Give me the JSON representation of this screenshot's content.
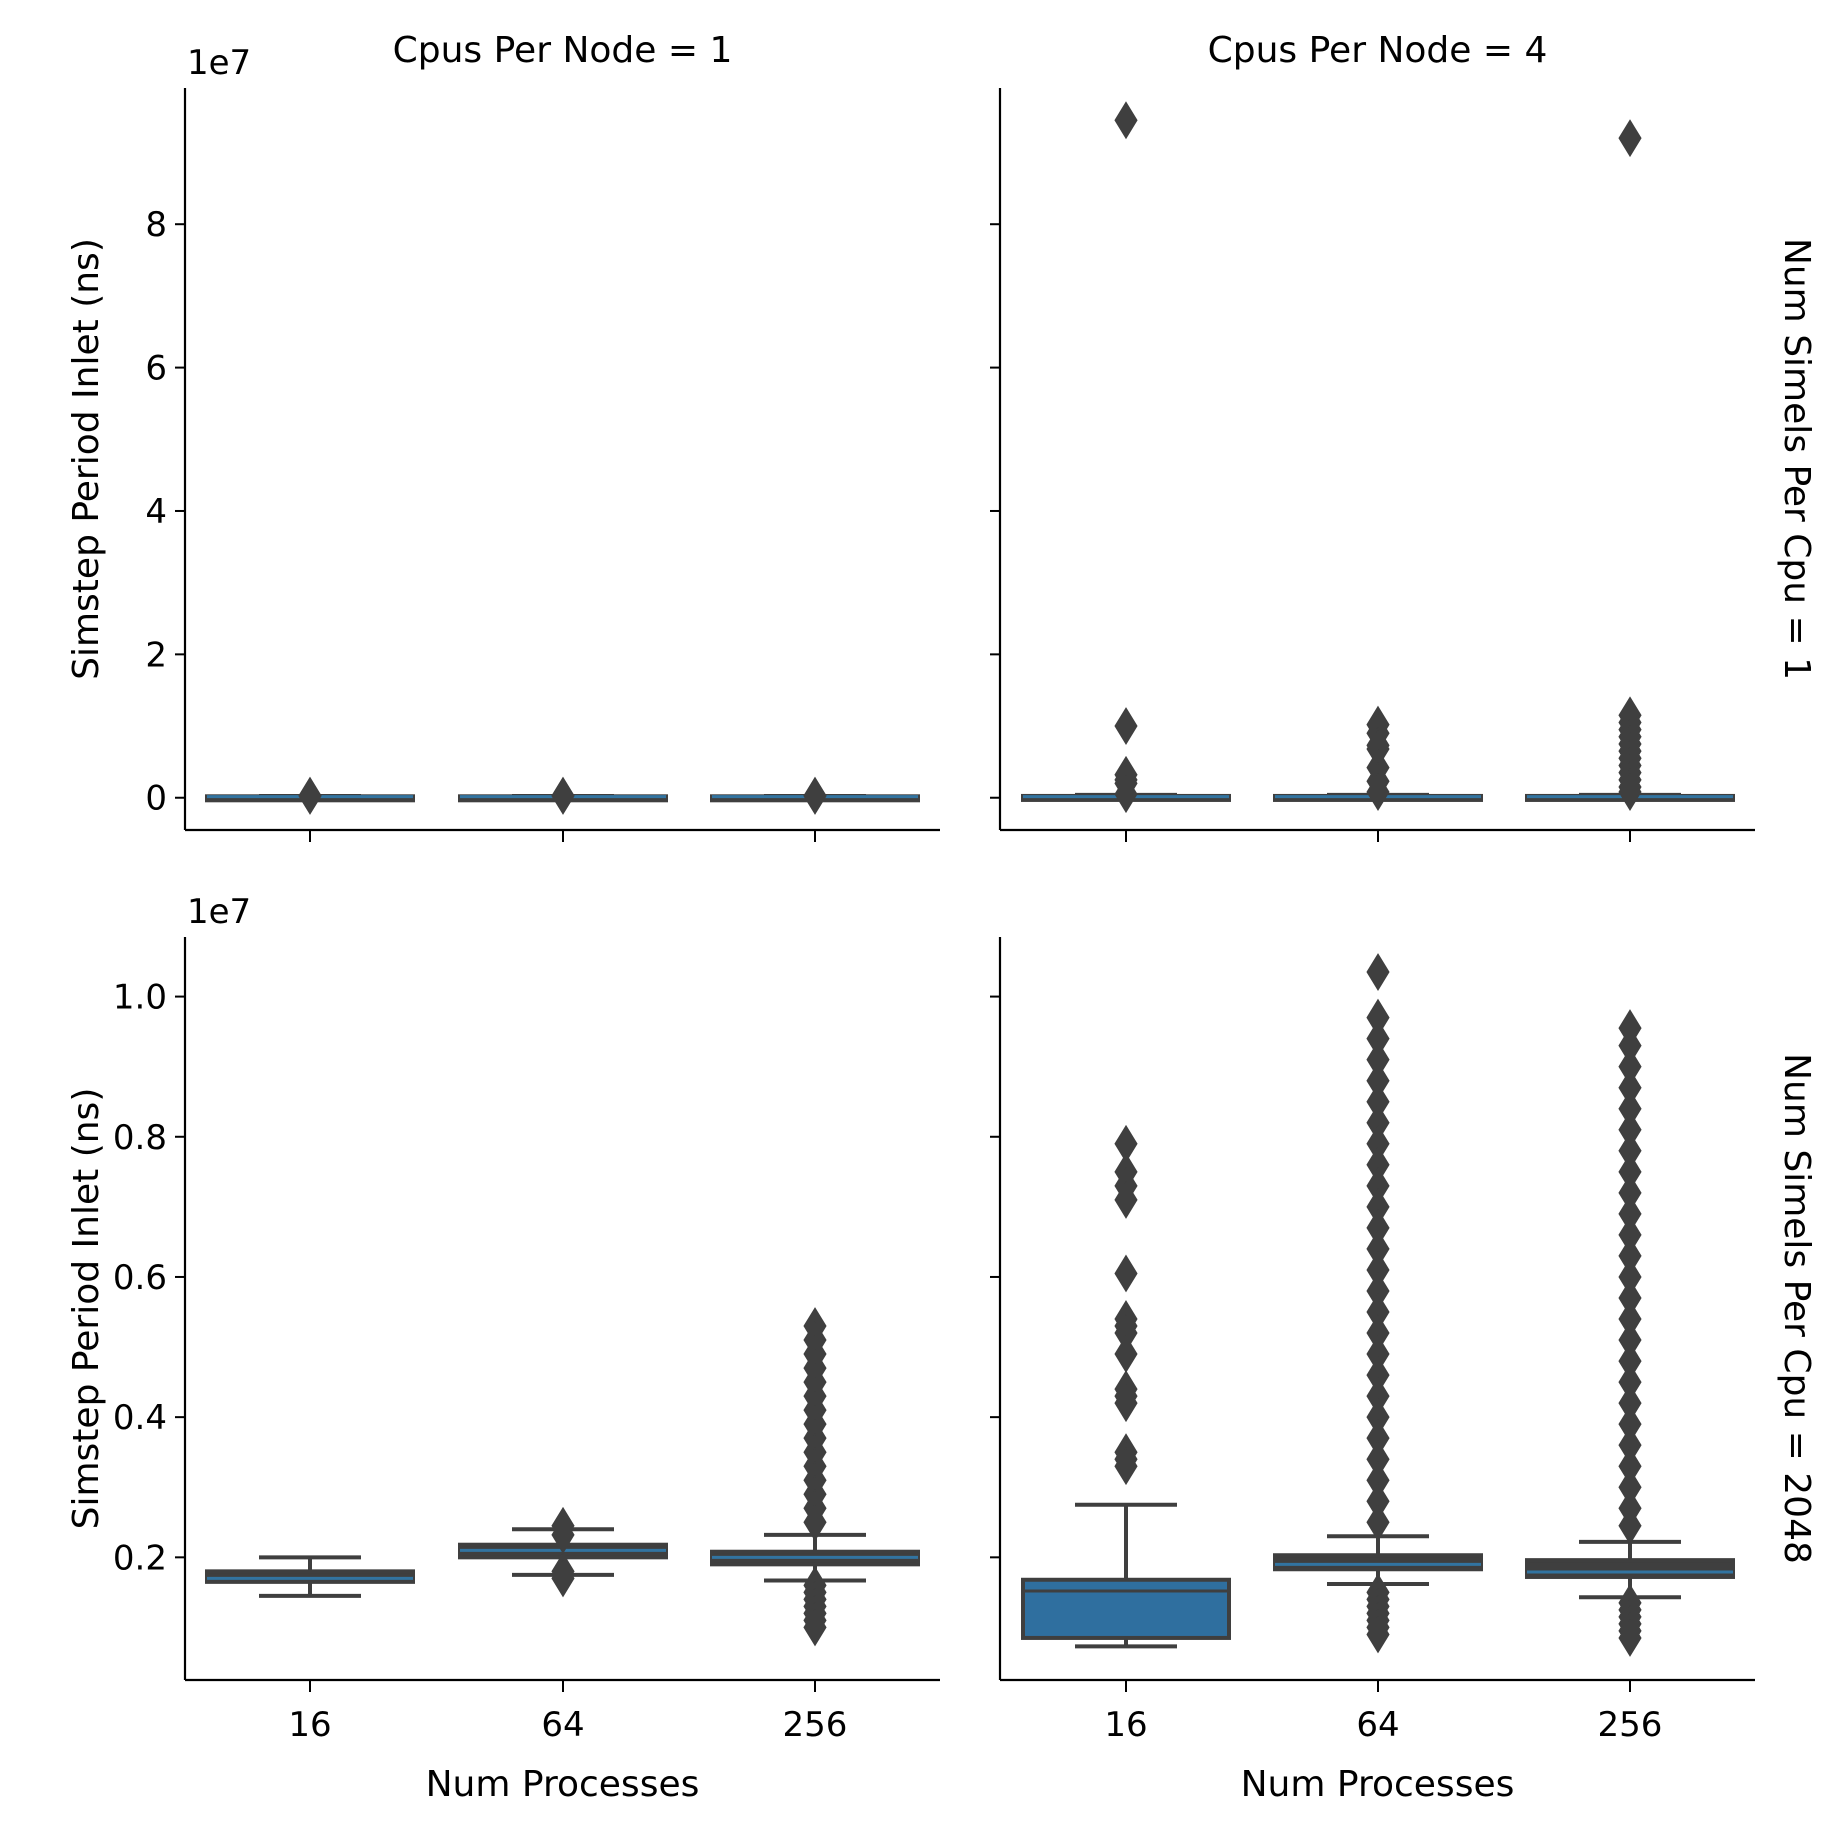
{
  "chart_data": {
    "type": "box",
    "facet_grid": {
      "col_variable": "Cpus Per Node",
      "row_variable": "Num Simels Per Cpu"
    },
    "xlabel": "Num Processes",
    "ylabel": "Simstep Period Inlet (ns)",
    "categories": [
      "16",
      "64",
      "256"
    ],
    "colors": {
      "box_fill": "#2f6f9f",
      "box_edge": "#3f3f3f",
      "median_on_fill": "#3274a1"
    },
    "panels": [
      {
        "row": 0,
        "col": 0,
        "title": "Cpus Per Node = 1",
        "row_label": "",
        "ylim": [
          -4500000,
          99000000
        ],
        "yticks": [
          0,
          20000000,
          40000000,
          60000000,
          80000000
        ],
        "ytick_labels": [
          "0",
          "2",
          "4",
          "6",
          "8"
        ],
        "offset_label": "1e7",
        "boxes": [
          {
            "category": "16",
            "q1": 100000,
            "median": 150000,
            "q3": 200000,
            "whisker_low": 80000,
            "whisker_high": 250000,
            "fliers": [
              300000,
              250000
            ],
            "filled": false
          },
          {
            "category": "64",
            "q1": 100000,
            "median": 150000,
            "q3": 200000,
            "whisker_low": 80000,
            "whisker_high": 250000,
            "fliers": [
              300000,
              250000
            ],
            "filled": false
          },
          {
            "category": "256",
            "q1": 100000,
            "median": 150000,
            "q3": 200000,
            "whisker_low": 80000,
            "whisker_high": 250000,
            "fliers": [
              300000,
              250000
            ],
            "filled": false
          }
        ]
      },
      {
        "row": 0,
        "col": 1,
        "title": "Cpus Per Node = 4",
        "row_label": "Num Simels Per Cpu = 1",
        "ylim": [
          -4500000,
          99000000
        ],
        "yticks": [
          0,
          20000000,
          40000000,
          60000000,
          80000000
        ],
        "ytick_labels": [],
        "offset_label": "",
        "boxes": [
          {
            "category": "16",
            "q1": 100000,
            "median": 150000,
            "q3": 250000,
            "whisker_low": 80000,
            "whisker_high": 400000,
            "fliers": [
              94500000,
              10000000,
              3200000,
              2500000,
              2000000,
              500000
            ],
            "filled": false
          },
          {
            "category": "64",
            "q1": 100000,
            "median": 150000,
            "q3": 250000,
            "whisker_low": 80000,
            "whisker_high": 400000,
            "fliers": [
              10200000,
              9000000,
              7300000,
              6800000,
              4200000,
              2300000,
              800000
            ],
            "filled": false
          },
          {
            "category": "256",
            "q1": 100000,
            "median": 150000,
            "q3": 250000,
            "whisker_low": 80000,
            "whisker_high": 400000,
            "fliers": [
              92000000,
              11500000,
              10500000,
              9500000,
              8500000,
              7500000,
              6500000,
              5500000,
              4500000,
              3500000,
              2500000,
              1500000,
              800000
            ],
            "filled": false
          }
        ]
      },
      {
        "row": 1,
        "col": 0,
        "title": "",
        "row_label": "",
        "ylim": [
          250000,
          10850000
        ],
        "yticks": [
          2000000,
          4000000,
          6000000,
          8000000,
          10000000
        ],
        "ytick_labels": [
          "0.2",
          "0.4",
          "0.6",
          "0.8",
          "1.0"
        ],
        "offset_label": "1e7",
        "boxes": [
          {
            "category": "16",
            "q1": 1650000,
            "median": 1700000,
            "q3": 1800000,
            "whisker_low": 1450000,
            "whisker_high": 2000000,
            "fliers": [],
            "filled": false
          },
          {
            "category": "64",
            "q1": 2000000,
            "median": 2100000,
            "q3": 2180000,
            "whisker_low": 1750000,
            "whisker_high": 2400000,
            "fliers": [
              2450000,
              2320000,
              1800000,
              1700000
            ],
            "filled": false
          },
          {
            "category": "256",
            "q1": 1900000,
            "median": 2000000,
            "q3": 2080000,
            "whisker_low": 1670000,
            "whisker_high": 2320000,
            "fliers": [
              5300000,
              5100000,
              4900000,
              4700000,
              4500000,
              4300000,
              4100000,
              3900000,
              3700000,
              3500000,
              3300000,
              3100000,
              2900000,
              2700000,
              2500000,
              1600000,
              1500000,
              1400000,
              1300000,
              1200000,
              1100000,
              1000000
            ],
            "filled": false
          }
        ]
      },
      {
        "row": 1,
        "col": 1,
        "title": "",
        "row_label": "Num Simels Per Cpu = 2048",
        "ylim": [
          250000,
          10850000
        ],
        "yticks": [
          2000000,
          4000000,
          6000000,
          8000000,
          10000000
        ],
        "ytick_labels": [],
        "offset_label": "",
        "boxes": [
          {
            "category": "16",
            "q1": 850000,
            "median": 1520000,
            "q3": 1680000,
            "whisker_low": 730000,
            "whisker_high": 2750000,
            "fliers": [
              7900000,
              7500000,
              7300000,
              7100000,
              6050000,
              5400000,
              5300000,
              5200000,
              4900000,
              4400000,
              4300000,
              4200000,
              3500000,
              3400000,
              3300000
            ],
            "filled": true
          },
          {
            "category": "64",
            "q1": 1830000,
            "median": 1900000,
            "q3": 2030000,
            "whisker_low": 1620000,
            "whisker_high": 2300000,
            "fliers": [
              10350000,
              9700000,
              9400000,
              9100000,
              8800000,
              8500000,
              8200000,
              7900000,
              7600000,
              7300000,
              7000000,
              6700000,
              6400000,
              6100000,
              5800000,
              5500000,
              5200000,
              4900000,
              4600000,
              4300000,
              4000000,
              3700000,
              3400000,
              3100000,
              2800000,
              2500000,
              1500000,
              1400000,
              1300000,
              1200000,
              1100000,
              1000000,
              900000
            ],
            "filled": false
          },
          {
            "category": "256",
            "q1": 1720000,
            "median": 1790000,
            "q3": 1960000,
            "whisker_low": 1430000,
            "whisker_high": 2220000,
            "fliers": [
              9550000,
              9300000,
              9000000,
              8700000,
              8400000,
              8100000,
              7800000,
              7500000,
              7200000,
              6900000,
              6600000,
              6300000,
              6000000,
              5700000,
              5400000,
              5100000,
              4800000,
              4500000,
              4200000,
              3900000,
              3600000,
              3300000,
              3000000,
              2700000,
              2450000,
              1350000,
              1250000,
              1150000,
              1050000,
              950000,
              850000
            ],
            "filled": false
          }
        ]
      }
    ]
  }
}
